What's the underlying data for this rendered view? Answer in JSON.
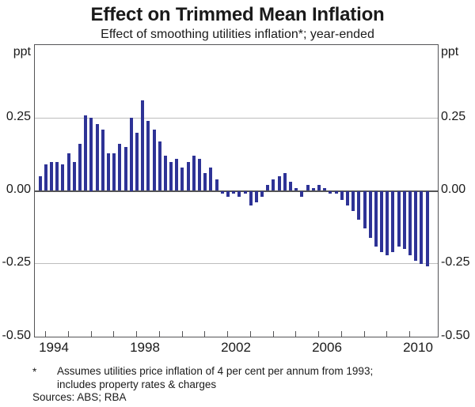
{
  "title": "Effect on Trimmed Mean Inflation",
  "subtitle": "Effect of smoothing utilities inflation*; year-ended",
  "y_axis": {
    "unit_left": "ppt",
    "unit_right": "ppt",
    "tick_labels": [
      "0.25",
      "0.00",
      "-0.25",
      "-0.50"
    ]
  },
  "x_axis": {
    "labels": [
      "1994",
      "1998",
      "2002",
      "2006",
      "2010"
    ]
  },
  "footnote": {
    "marker": "*",
    "line1": "Assumes utilities price inflation of 4 per cent per annum from 1993;",
    "line2": "includes property rates & charges",
    "sources": "Sources: ABS; RBA"
  },
  "colors": {
    "bar": "#2e3396",
    "grid": "#bdbdbd",
    "axis": "#545456"
  },
  "chart_data": {
    "type": "bar",
    "title": "Effect on Trimmed Mean Inflation",
    "subtitle": "Effect of smoothing utilities inflation*; year-ended",
    "xlabel": "",
    "ylabel": "ppt",
    "ylim": [
      -0.5,
      0.5
    ],
    "ytick_values": [
      0.25,
      0.0,
      -0.25,
      -0.5
    ],
    "gridlines": [
      0.25,
      -0.25
    ],
    "legend": "none",
    "frequency": "quarterly",
    "xticks": [
      "1994",
      "1998",
      "2002",
      "2006",
      "2010"
    ],
    "categories": [
      "1993Q4",
      "1994Q1",
      "1994Q2",
      "1994Q3",
      "1994Q4",
      "1995Q1",
      "1995Q2",
      "1995Q3",
      "1995Q4",
      "1996Q1",
      "1996Q2",
      "1996Q3",
      "1996Q4",
      "1997Q1",
      "1997Q2",
      "1997Q3",
      "1997Q4",
      "1998Q1",
      "1998Q2",
      "1998Q3",
      "1998Q4",
      "1999Q1",
      "1999Q2",
      "1999Q3",
      "1999Q4",
      "2000Q1",
      "2000Q2",
      "2000Q3",
      "2000Q4",
      "2001Q1",
      "2001Q2",
      "2001Q3",
      "2001Q4",
      "2002Q1",
      "2002Q2",
      "2002Q3",
      "2002Q4",
      "2003Q1",
      "2003Q2",
      "2003Q3",
      "2003Q4",
      "2004Q1",
      "2004Q2",
      "2004Q3",
      "2004Q4",
      "2005Q1",
      "2005Q2",
      "2005Q3",
      "2005Q4",
      "2006Q1",
      "2006Q2",
      "2006Q3",
      "2006Q4",
      "2007Q1",
      "2007Q2",
      "2007Q3",
      "2007Q4",
      "2008Q1",
      "2008Q2",
      "2008Q3",
      "2008Q4",
      "2009Q1",
      "2009Q2",
      "2009Q3",
      "2009Q4",
      "2010Q1",
      "2010Q2",
      "2010Q3",
      "2010Q4"
    ],
    "values": [
      0.05,
      0.09,
      0.1,
      0.1,
      0.09,
      0.13,
      0.1,
      0.16,
      0.26,
      0.25,
      0.23,
      0.21,
      0.13,
      0.13,
      0.16,
      0.15,
      0.25,
      0.2,
      0.31,
      0.24,
      0.21,
      0.17,
      0.12,
      0.1,
      0.11,
      0.08,
      0.1,
      0.12,
      0.11,
      0.06,
      0.08,
      0.04,
      -0.01,
      -0.02,
      -0.01,
      -0.02,
      -0.01,
      -0.05,
      -0.04,
      -0.02,
      0.02,
      0.04,
      0.05,
      0.06,
      0.03,
      0.01,
      -0.02,
      0.02,
      0.01,
      0.02,
      0.01,
      -0.01,
      -0.01,
      -0.03,
      -0.05,
      -0.07,
      -0.1,
      -0.13,
      -0.16,
      -0.19,
      -0.21,
      -0.22,
      -0.21,
      -0.19,
      -0.2,
      -0.22,
      -0.24,
      -0.25,
      -0.26
    ]
  }
}
